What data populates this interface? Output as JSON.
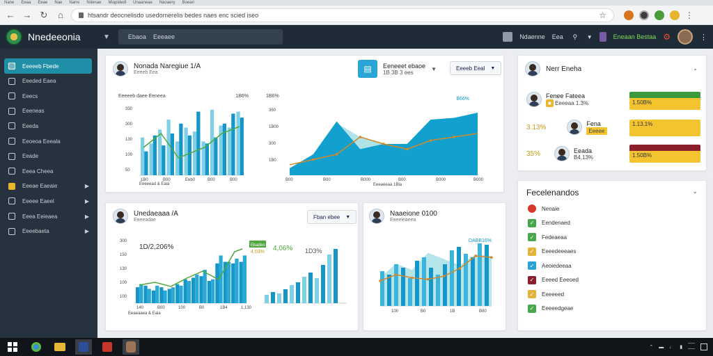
{
  "browser": {
    "tabs": [
      "Nane",
      "Eeaa",
      "Eeae",
      "Nae",
      "Narre",
      "Ndenae",
      "Miapidedl",
      "Unaaneae",
      "Naoaery",
      "Boeari"
    ],
    "address": "htsandr deocnelisdo usedomerelis bedes naes enc scied iseo"
  },
  "header": {
    "brand": "Nnedeeonia",
    "search_text_1": "Ebaoa",
    "search_text_2": "Eeeaee",
    "right_text_1": "Ndaenne",
    "right_text_2": "Eea",
    "right_green": "Eneaan Bestaa"
  },
  "sidebar": {
    "items": [
      {
        "label": "Eeeeeb Fbede",
        "active": true
      },
      {
        "label": "Eeeded Eaea"
      },
      {
        "label": "Eeecs"
      },
      {
        "label": "Eeeneas"
      },
      {
        "label": "Eeeda"
      },
      {
        "label": "Eeoeoa Eeeala"
      },
      {
        "label": "Eeade"
      },
      {
        "label": "Eeea Cheea"
      },
      {
        "label": "Eeeae Eaeaie",
        "warn": true,
        "arrow": true
      },
      {
        "label": "Eeeee Eaeel",
        "arrow": true
      },
      {
        "label": "Eeea Eeieaea",
        "arrow": true
      },
      {
        "label": "Eeeebaeta",
        "arrow": true
      }
    ]
  },
  "card1": {
    "title": "Nonada Naregiue 1/A",
    "subtitle": "Eeeeb Eea",
    "kpi_title": "Eeneeet ebaoe",
    "kpi_sub": "1B 3B 3 ees",
    "dropdown": "Eeeeb Eeal",
    "left_chart_title": "Eeeeeb daee Eeneea",
    "left_chart_pct": "1B6%",
    "left_xlabel": "Eeeeead & Eaia",
    "right_chart_title": "1B6%",
    "right_chart_pct": "B66%",
    "right_xlabel": "Eeeaeeaa 1Bla"
  },
  "card2": {
    "title": "Unedaeaaa /A",
    "subtitle": "Eeeeadae",
    "dropdown": "Fban ebee",
    "big1": "1D/2,206%",
    "big2": "1D3%",
    "green_badge": "Ebadeo",
    "pct1": "4,06%",
    "pct2": "4,03%",
    "xlabel": "Eeaeaaea & Eaia"
  },
  "card3": {
    "title": "Naaeione 0100",
    "subtitle": "Eeeeleaeea",
    "pct": "DABB16%"
  },
  "right_card1": {
    "title": "Nerr Eneha",
    "rows": [
      {
        "title": "Fenee Fateea",
        "sub": "Eeeeaa 1.3%",
        "box": "1.50B%",
        "box_label": "Eeeeeeeaee"
      },
      {
        "left": "3.13%",
        "name": "Fena",
        "sub": "Eeeee",
        "box": "1.13.1%",
        "box_label": "Eeeeeeeaee"
      },
      {
        "left": "35%",
        "name": "Eeada",
        "sub": "B4,13%",
        "box": "1.50B%",
        "box_label": "Eeeeeeeaee"
      }
    ]
  },
  "right_card2": {
    "title": "Fecelenandos",
    "items": [
      {
        "label": "Nenaie",
        "color": "#d8382a"
      },
      {
        "label": "Eendenaed",
        "color": "#47a84b"
      },
      {
        "label": "Fedeaeaa",
        "color": "#47a84b"
      },
      {
        "label": "Eeeedeeeaes",
        "color": "#e4b33b"
      },
      {
        "label": "Aeoiedeeaa",
        "color": "#29a3d6"
      },
      {
        "label": "Eeeed Eeeoed",
        "color": "#8d1f2c"
      },
      {
        "label": "Eeeeeed",
        "color": "#e4b33b"
      },
      {
        "label": "Eeeeedgeae",
        "color": "#47a84b"
      }
    ]
  },
  "chart_data": [
    {
      "type": "bar",
      "title": "Eeeeeb daee Eeneea",
      "xlabel": "Eeeeead & Eaia",
      "tick_labels_x": [
        "1B0",
        "B00",
        "Eeb0",
        "B00",
        "B00"
      ],
      "tick_labels_y": [
        "330",
        "300",
        "130",
        "100",
        "50"
      ],
      "ylim": [
        0,
        350
      ],
      "series": [
        {
          "values": [
            120,
            200,
            150,
            210,
            260,
            200,
            320,
            160,
            190,
            260,
            310,
            290
          ]
        },
        {
          "values": [
            190,
            160,
            230,
            280,
            170,
            240,
            220,
            170,
            330,
            250,
            240,
            320
          ]
        }
      ]
    },
    {
      "type": "area",
      "title": "1B6%",
      "xlabel": "Eeeaeeaa 1Bla",
      "tick_labels_x": [
        "B00",
        "B00",
        "B000",
        "B00",
        "B000",
        "B000"
      ],
      "tick_labels_y": [
        "350",
        "1B00",
        "300",
        "1B0"
      ],
      "ylim": [
        0,
        400
      ],
      "series": [
        {
          "values": [
            40,
            120,
            310,
            150,
            180,
            180,
            320,
            330,
            360
          ]
        },
        {
          "values": [
            60,
            90,
            120,
            220,
            180,
            150,
            200,
            220,
            240
          ]
        },
        {
          "values": [
            0,
            0,
            300,
            220,
            180,
            180,
            200,
            320,
            0
          ]
        }
      ]
    },
    {
      "type": "bar",
      "title": "Unedaeaaa /A",
      "xlabel": "Eeaeaaea & Eaia",
      "tick_labels_x": [
        "140",
        "B00",
        "100",
        "B0",
        "1B4",
        "1,130"
      ],
      "tick_labels_y": [
        "300",
        "150",
        "130",
        "100",
        "100"
      ],
      "ylim": [
        0,
        350
      ],
      "series": [
        {
          "values": [
            100,
            110,
            80,
            100,
            90,
            120,
            150,
            160,
            170,
            140,
            250,
            260,
            250,
            260
          ]
        },
        {
          "values": [
            120,
            90,
            110,
            80,
            100,
            110,
            140,
            180,
            210,
            150,
            300,
            260,
            280,
            300
          ]
        }
      ]
    },
    {
      "type": "area",
      "title": "Naaeione 0100",
      "xlabel": "",
      "tick_labels_x": [
        "100",
        "B0",
        "1B",
        "B00"
      ],
      "tick_labels_y": [],
      "ylim": [
        0,
        400
      ],
      "series": [
        {
          "values": [
            180,
            270,
            230,
            340,
            300,
            260,
            330,
            320
          ]
        },
        {
          "values": [
            160,
            200,
            180,
            170,
            190,
            240,
            320,
            310
          ]
        }
      ]
    }
  ]
}
